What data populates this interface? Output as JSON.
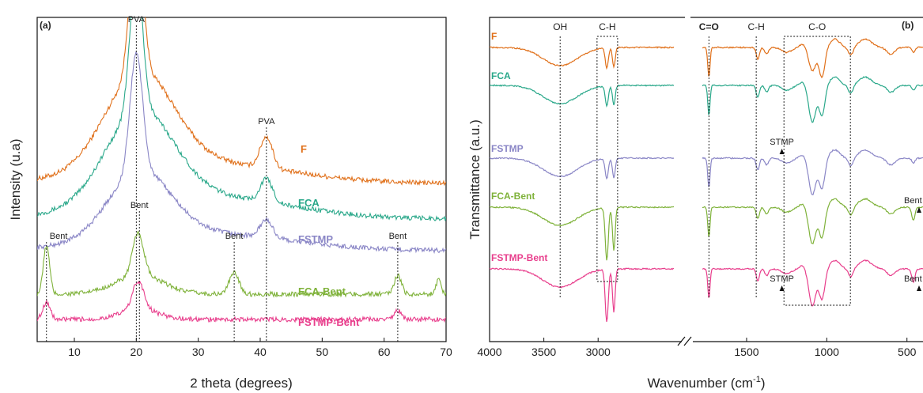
{
  "chart_data": [
    {
      "type": "line",
      "panel_label": "(a)",
      "xlabel": "2 theta (degrees)",
      "ylabel": "Intensity (u.a)",
      "xlim": [
        4,
        70
      ],
      "xticks": [
        10,
        20,
        30,
        40,
        50,
        60,
        70
      ],
      "grid": false,
      "series": [
        {
          "name": "F",
          "color": "#e0701a",
          "offset": 180,
          "amp": 1.0
        },
        {
          "name": "FCA",
          "color": "#2aa88a",
          "offset": 135,
          "amp": 0.95
        },
        {
          "name": "FSTMP",
          "color": "#8a86c6",
          "offset": 95,
          "amp": 0.85
        },
        {
          "name": "FCA-Bent",
          "color": "#7fb23a",
          "offset": 40,
          "amp": 0.35
        },
        {
          "name": "FSTMP-Bent",
          "color": "#e83e8c",
          "offset": 8,
          "amp": 0.2
        }
      ],
      "peak_markers": [
        {
          "x": 20.0,
          "label": "PVA",
          "level": "top"
        },
        {
          "x": 41.0,
          "label": "PVA",
          "level": "mid"
        },
        {
          "x": 5.5,
          "label": "Bent",
          "level": "low"
        },
        {
          "x": 20.5,
          "label": "Bent",
          "level": "mid2"
        },
        {
          "x": 35.8,
          "label": "Bent",
          "level": "low"
        },
        {
          "x": 62.2,
          "label": "Bent",
          "level": "low"
        }
      ]
    },
    {
      "type": "line",
      "panel_label": "(b)",
      "xlabel": "Wavenumber (cm⁻¹)",
      "xlabel_main": "Wavenumber (cm",
      "xlabel_sup": "-1",
      "xlabel_end": ")",
      "ylabel": "Transmittance (a.u.)",
      "x_reversed": true,
      "xlim": [
        4000,
        400
      ],
      "axis_break": [
        2200,
        1850
      ],
      "xticks": [
        4000,
        3500,
        3000,
        1500,
        1000,
        500
      ],
      "grid": false,
      "series": [
        {
          "name": "F",
          "color": "#e0701a"
        },
        {
          "name": "FCA",
          "color": "#2aa88a"
        },
        {
          "name": "FSTMP",
          "color": "#8a86c6"
        },
        {
          "name": "FCA-Bent",
          "color": "#7fb23a"
        },
        {
          "name": "FSTMP-Bent",
          "color": "#e83e8c"
        }
      ],
      "band_labels": [
        {
          "x": 3350,
          "label": "OH",
          "bold": false
        },
        {
          "x": 2915,
          "label": "C-H",
          "bold": false
        },
        {
          "x": 1735,
          "label": "C=O",
          "bold": true
        },
        {
          "x": 1440,
          "label": "C-H",
          "bold": false
        },
        {
          "x": 1060,
          "label": "C-O",
          "bold": false
        }
      ],
      "annotations": [
        {
          "x": 1280,
          "label": "STMP",
          "series": "FSTMP"
        },
        {
          "x": 1280,
          "label": "STMP",
          "series": "FSTMP-Bent"
        },
        {
          "x": 460,
          "label": "Bent",
          "series": "FCA-Bent"
        },
        {
          "x": 460,
          "label": "Bent",
          "series": "FSTMP-Bent"
        }
      ]
    }
  ]
}
